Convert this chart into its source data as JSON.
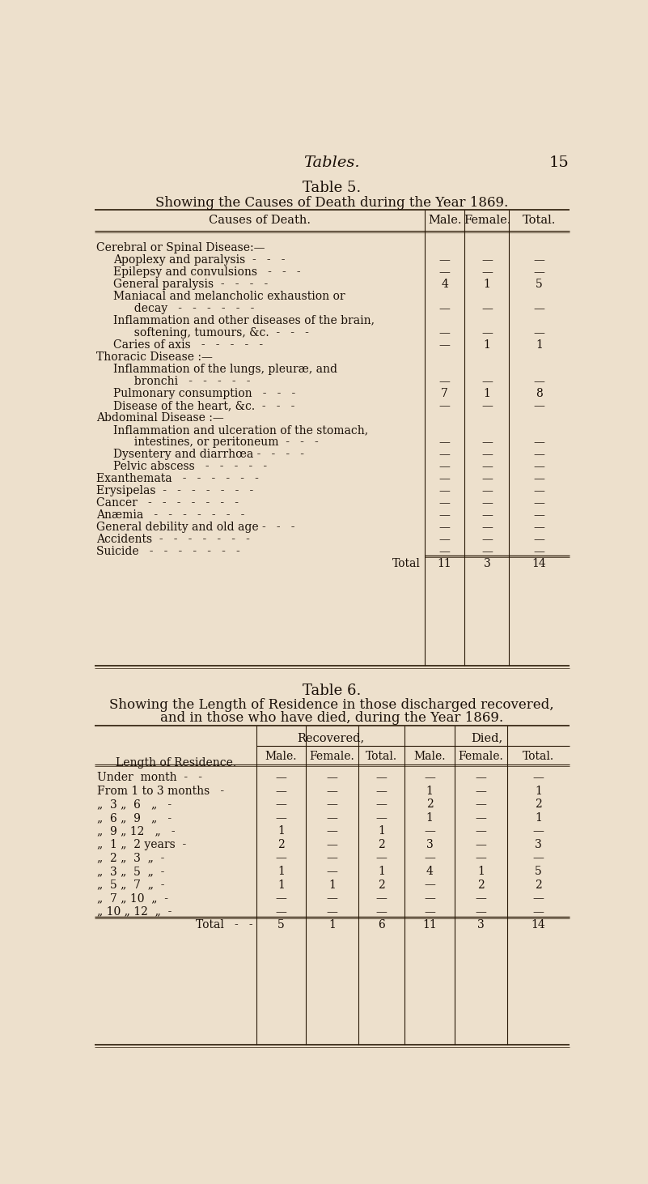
{
  "bg_color": "#ede0cc",
  "title_italic": "Tables.",
  "page_num": "15",
  "table5_title": "Table 5.",
  "table5_subtitle": "Showing the Causes of Death during the Year 1869.",
  "table6_title": "Table 6.",
  "table6_subtitle1": "Showing the Length of Residence in those discharged recovered,",
  "table6_subtitle2": "and in those who have died, during the Year 1869.",
  "table5_rows": [
    {
      "label": "Cerebral or Spinal Disease:—",
      "indent": 0,
      "section": true,
      "male": "",
      "female": "",
      "total": ""
    },
    {
      "label": "Apoplexy and paralysis  -   -   -",
      "indent": 1,
      "male": "—",
      "female": "—",
      "total": "—"
    },
    {
      "label": "Epilepsy and convulsions   -   -   -",
      "indent": 1,
      "male": "—",
      "female": "—",
      "total": "—"
    },
    {
      "label": "General paralysis  -   -   -   -",
      "indent": 1,
      "male": "4",
      "female": "1",
      "total": "5"
    },
    {
      "label": "Maniacal and melancholic exhaustion or",
      "indent": 1,
      "male": "",
      "female": "",
      "total": ""
    },
    {
      "label": "  decay   -   -   -   -   -   -",
      "indent": 2,
      "male": "—",
      "female": "—",
      "total": "—"
    },
    {
      "label": "Inflammation and other diseases of the brain,",
      "indent": 1,
      "male": "",
      "female": "",
      "total": ""
    },
    {
      "label": "  softening, tumours, &c.  -   -   -",
      "indent": 2,
      "male": "—",
      "female": "—",
      "total": "—"
    },
    {
      "label": "Caries of axis   -   -   -   -   -",
      "indent": 1,
      "male": "—",
      "female": "1",
      "total": "1"
    },
    {
      "label": "Thoracic Disease :—",
      "indent": 0,
      "section": true,
      "male": "",
      "female": "",
      "total": ""
    },
    {
      "label": "Inflammation of the lungs, pleuræ, and",
      "indent": 1,
      "male": "",
      "female": "",
      "total": ""
    },
    {
      "label": "  bronchi   -   -   -   -   -",
      "indent": 2,
      "male": "—",
      "female": "—",
      "total": "—"
    },
    {
      "label": "Pulmonary consumption   -   -   -",
      "indent": 1,
      "male": "7",
      "female": "1",
      "total": "8"
    },
    {
      "label": "Disease of the heart, &c.  -   -   -",
      "indent": 1,
      "male": "—",
      "female": "—",
      "total": "—"
    },
    {
      "label": "Abdominal Disease :—",
      "indent": 0,
      "section": true,
      "male": "",
      "female": "",
      "total": ""
    },
    {
      "label": "Inflammation and ulceration of the stomach,",
      "indent": 1,
      "male": "",
      "female": "",
      "total": ""
    },
    {
      "label": "  intestines, or peritoneum  -   -   -",
      "indent": 2,
      "male": "—",
      "female": "—",
      "total": "—"
    },
    {
      "label": "Dysentery and diarrhœa -   -   -   -",
      "indent": 1,
      "male": "—",
      "female": "—",
      "total": "—"
    },
    {
      "label": "Pelvic abscess   -   -   -   -   -",
      "indent": 1,
      "male": "—",
      "female": "—",
      "total": "—"
    },
    {
      "label": "Exanthemata   -   -   -   -   -   -",
      "indent": 0,
      "male": "—",
      "female": "—",
      "total": "—"
    },
    {
      "label": "Erysipelas  -   -   -   -   -   -   -",
      "indent": 0,
      "male": "—",
      "female": "—",
      "total": "—"
    },
    {
      "label": "Cancer   -   -   -   -   -   -   -",
      "indent": 0,
      "male": "—",
      "female": "—",
      "total": "—"
    },
    {
      "label": "Anæmia   -   -   -   -   -   -   -",
      "indent": 0,
      "male": "—",
      "female": "—",
      "total": "—"
    },
    {
      "label": "General debility and old age -   -   -",
      "indent": 0,
      "male": "—",
      "female": "—",
      "total": "—"
    },
    {
      "label": "Accidents  -   -   -   -   -   -   -",
      "indent": 0,
      "male": "—",
      "female": "—",
      "total": "—"
    },
    {
      "label": "Suicide   -   -   -   -   -   -   -",
      "indent": 0,
      "male": "—",
      "female": "—",
      "total": "—"
    },
    {
      "label": "Total",
      "indent": 99,
      "male": "11",
      "female": "3",
      "total": "14"
    }
  ],
  "table6_rows": [
    {
      "label": "Under  month  -   -",
      "r_male": "—",
      "r_female": "—",
      "r_total": "—",
      "d_male": "—",
      "d_female": "—",
      "d_total": "—"
    },
    {
      "label": "From 1 to 3 months   -",
      "r_male": "—",
      "r_female": "—",
      "r_total": "—",
      "d_male": "1",
      "d_female": "—",
      "d_total": "1"
    },
    {
      "„  3 „  6   „    -": "„  3 „  6   „    -",
      "label": "\"  3 \"  6   \"   -",
      "r_male": "—",
      "r_female": "—",
      "r_total": "—",
      "d_male": "2",
      "d_female": "—",
      "d_total": "2"
    },
    {
      "label": "\"  6 \"  9   \"   -",
      "r_male": "—",
      "r_female": "—",
      "r_total": "—",
      "d_male": "1",
      "d_female": "—",
      "d_total": "1"
    },
    {
      "label": "\"  9 \" 12   \"   -",
      "r_male": "1",
      "r_female": "—",
      "r_total": "1",
      "d_male": "—",
      "d_female": "—",
      "d_total": "—"
    },
    {
      "label": "\"  1 \"  2 years  -",
      "r_male": "2",
      "r_female": "—",
      "r_total": "2",
      "d_male": "3",
      "d_female": "—",
      "d_total": "3"
    },
    {
      "label": "\"  2 \"  3  \"  -",
      "r_male": "—",
      "r_female": "—",
      "r_total": "—",
      "d_male": "—",
      "d_female": "—",
      "d_total": "—"
    },
    {
      "label": "\"  3 \"  5  \"  -",
      "r_male": "1",
      "r_female": "—",
      "r_total": "1",
      "d_male": "4",
      "d_female": "1",
      "d_total": "5"
    },
    {
      "label": "\"  5 \"  7  \"  -",
      "r_male": "1",
      "r_female": "1",
      "r_total": "2",
      "d_male": "—",
      "d_female": "2",
      "d_total": "2"
    },
    {
      "label": "\"  7 \" 10  \"  -",
      "r_male": "—",
      "r_female": "—",
      "r_total": "—",
      "d_male": "—",
      "d_female": "—",
      "d_total": "—"
    },
    {
      "label": "\" 10 \" 12  \"  -",
      "r_male": "—",
      "r_female": "—",
      "r_total": "—",
      "d_male": "—",
      "d_female": "—",
      "d_total": "—"
    },
    {
      "label": "Total   -   -",
      "r_male": "5",
      "r_female": "1",
      "r_total": "6",
      "d_male": "11",
      "d_female": "3",
      "d_total": "14"
    }
  ]
}
